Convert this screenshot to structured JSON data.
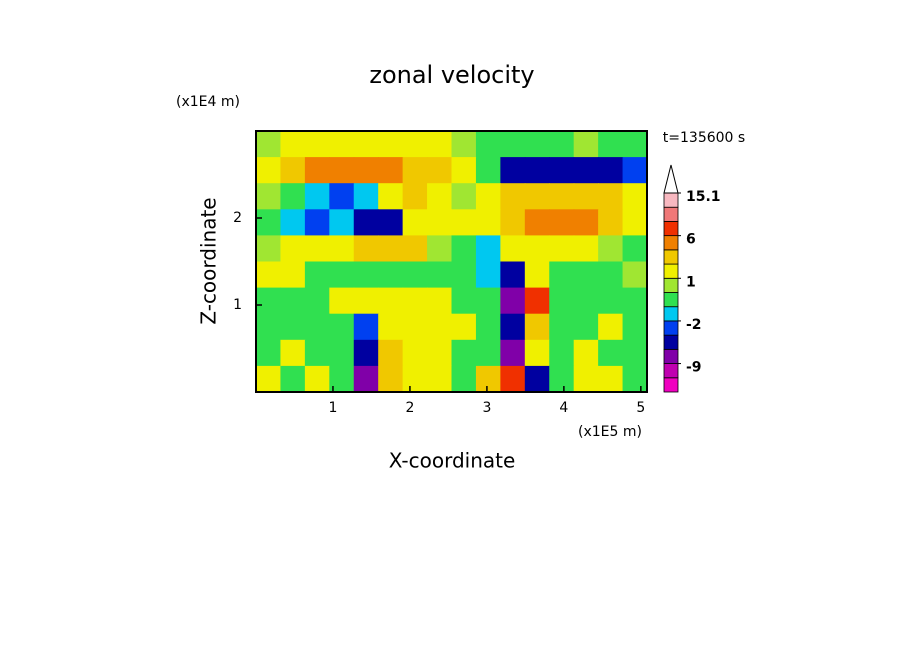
{
  "chart_data": {
    "type": "contour",
    "title": "zonal velocity",
    "x_label": "X-coordinate",
    "y_label": "Z-coordinate",
    "x_unit": "(x1E5 m)",
    "y_unit": "(x1E4 m)",
    "time_label": "t=135600 s",
    "xlim": [
      0,
      5.08
    ],
    "ylim": [
      0,
      3
    ],
    "xticks": [
      1,
      2,
      3,
      4,
      5
    ],
    "yticks": [
      1,
      2
    ],
    "z": [
      [
        0.5,
        1.5,
        1.5,
        1.5,
        1.5,
        1.5,
        1.5,
        1.5,
        0.5,
        -0.5,
        -0.5,
        -0.5,
        -0.5,
        0.5,
        -0.5,
        -0.5
      ],
      [
        1.5,
        3,
        5,
        5,
        5,
        5,
        3,
        3,
        1.5,
        -0.5,
        -5,
        -5,
        -5,
        -5,
        -5,
        -3
      ],
      [
        0.5,
        -0.5,
        -1.5,
        -3,
        -1.5,
        1.5,
        3,
        1.5,
        0.5,
        1.5,
        3,
        3,
        3,
        3,
        3,
        1.5
      ],
      [
        -0.5,
        -1.5,
        -3,
        -1.5,
        -5,
        -5,
        1.5,
        1.5,
        1.5,
        1.5,
        3,
        5,
        5,
        5,
        3,
        1.5
      ],
      [
        0.5,
        1.5,
        1.5,
        1.5,
        3,
        3,
        3,
        0.5,
        -0.5,
        -1.5,
        1.5,
        1.5,
        1.5,
        1.5,
        0.5,
        -0.5
      ],
      [
        1.5,
        1.5,
        -0.5,
        -0.5,
        -0.5,
        -0.5,
        -0.5,
        -0.5,
        -0.5,
        -1.5,
        -5,
        1.5,
        -0.5,
        -0.5,
        -0.5,
        0.5
      ],
      [
        -0.5,
        -0.5,
        -0.5,
        1.5,
        1.5,
        1.5,
        1.5,
        1.5,
        -0.5,
        -0.5,
        -7,
        7,
        -0.5,
        -0.5,
        -0.5,
        -0.5
      ],
      [
        -0.5,
        -0.5,
        -0.5,
        -0.5,
        -3,
        1.5,
        1.5,
        1.5,
        1.5,
        -0.5,
        -5,
        3,
        -0.5,
        -0.5,
        1.5,
        -0.5
      ],
      [
        -0.5,
        1.5,
        -0.5,
        -0.5,
        -5,
        3,
        1.5,
        1.5,
        -0.5,
        -0.5,
        -7,
        1.5,
        -0.5,
        1.5,
        -0.5,
        -0.5
      ],
      [
        1.5,
        -0.5,
        1.5,
        -0.5,
        -7,
        3,
        1.5,
        1.5,
        -0.5,
        3,
        6.5,
        -5,
        -0.5,
        1.5,
        1.5,
        -0.5
      ]
    ],
    "colorbar": {
      "levels": [
        -15,
        -12,
        -9,
        -6,
        -4,
        -2,
        -1,
        0,
        1,
        2,
        4,
        6,
        9,
        12,
        15.1
      ],
      "colors": [
        "#f000c0",
        "#c000b0",
        "#8000a8",
        "#0000a0",
        "#0040f0",
        "#00c8f0",
        "#30e050",
        "#a0e632",
        "#f0f000",
        "#f0c800",
        "#f08000",
        "#f03000",
        "#f07878",
        "#f8b8c0"
      ],
      "extend_color": "#ffffff",
      "ticks": [
        15.1,
        6,
        1,
        -2,
        -9
      ]
    }
  }
}
